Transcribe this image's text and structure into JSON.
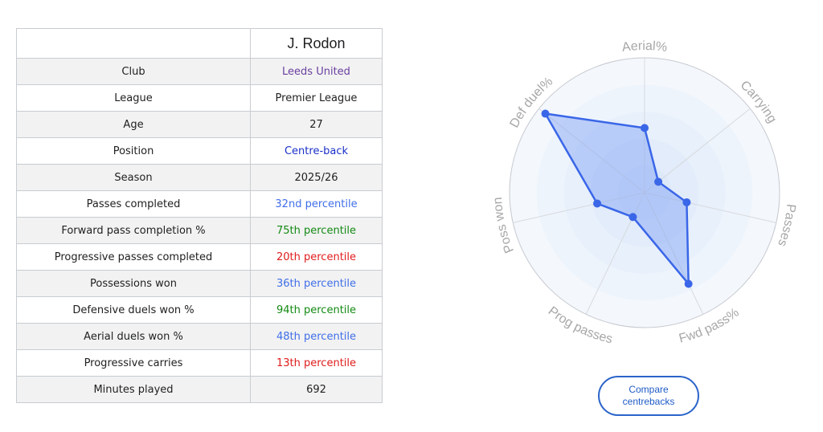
{
  "table": {
    "player": "J. Rodon",
    "rows": [
      {
        "label": "Club",
        "value": "Leeds United",
        "color": "#6a3fa0"
      },
      {
        "label": "League",
        "value": "Premier League",
        "color": "#202122"
      },
      {
        "label": "Age",
        "value": "27",
        "color": "#202122"
      },
      {
        "label": "Position",
        "value": "Centre-back",
        "color": "#1a30c8"
      },
      {
        "label": "Season",
        "value": "2025/26",
        "color": "#202122"
      },
      {
        "label": "Passes completed",
        "value": "32nd percentile",
        "color": "#3f6ee8"
      },
      {
        "label": "Forward pass completion %",
        "value": "75th percentile",
        "color": "#138a13"
      },
      {
        "label": "Progressive passes completed",
        "value": "20th percentile",
        "color": "#e01b1b"
      },
      {
        "label": "Possessions won",
        "value": "36th percentile",
        "color": "#3f6ee8"
      },
      {
        "label": "Defensive duels won %",
        "value": "94th percentile",
        "color": "#138a13"
      },
      {
        "label": "Aerial duels won %",
        "value": "48th percentile",
        "color": "#3f6ee8"
      },
      {
        "label": "Progressive carries",
        "value": "13th percentile",
        "color": "#e01b1b"
      },
      {
        "label": "Minutes played",
        "value": "692",
        "color": "#202122"
      }
    ]
  },
  "chart_data": {
    "type": "radar",
    "max": 100,
    "axes": [
      {
        "label": "Aerial%",
        "value": 48
      },
      {
        "label": "Carrying",
        "value": 13
      },
      {
        "label": "Passes",
        "value": 32
      },
      {
        "label": "Fwd pass%",
        "value": 75
      },
      {
        "label": "Prog passes",
        "value": 20
      },
      {
        "label": "Poss won",
        "value": 36
      },
      {
        "label": "Def duel%",
        "value": 94
      }
    ],
    "series_color": "#3a66e8",
    "fill_color": "#7c9ff5"
  },
  "compare_button": {
    "label": "Compare\ncentrebacks"
  }
}
